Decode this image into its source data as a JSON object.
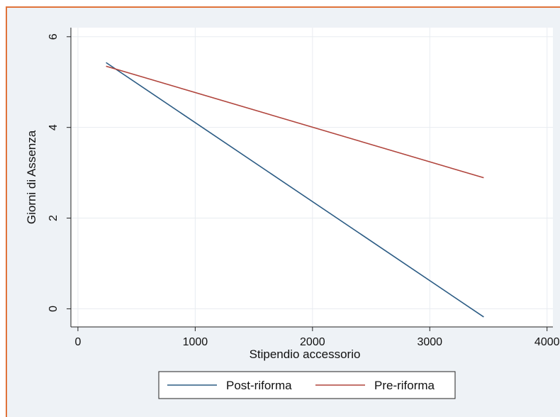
{
  "chart_data": {
    "type": "line",
    "title": "",
    "xlabel": "Stipendio accessorio",
    "ylabel": "Giorni di Assenza",
    "xlim": [
      -60,
      4050
    ],
    "ylim": [
      -0.4,
      6.2
    ],
    "xticks": [
      0,
      1000,
      2000,
      3000,
      4000
    ],
    "yticks": [
      0,
      2,
      4,
      6
    ],
    "grid": true,
    "legend_position": "bottom",
    "series": [
      {
        "name": "Post-riforma",
        "color": "#2b5b84",
        "x": [
          240,
          3460
        ],
        "y": [
          5.43,
          -0.18
        ]
      },
      {
        "name": "Pre-riforma",
        "color": "#b0443c",
        "x": [
          240,
          3460
        ],
        "y": [
          5.35,
          2.89
        ]
      }
    ]
  },
  "colors": {
    "frame_border": "#e0733a",
    "frame_background": "#eef2f6",
    "plot_background": "#ffffff",
    "grid": "#e8ecf0"
  }
}
